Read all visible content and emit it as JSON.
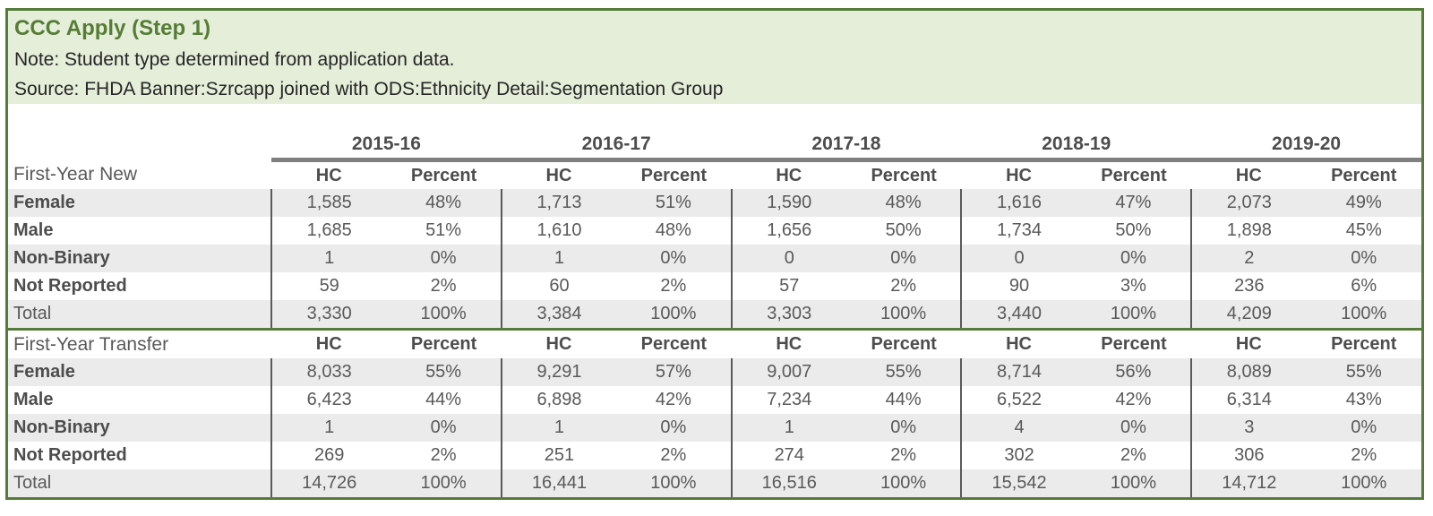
{
  "header": {
    "title": "CCC Apply (Step 1)",
    "note": "Note: Student type determined from application data.",
    "source": "Source: FHDA Banner:Szrcapp joined with ODS:Ethnicity Detail:Segmentation Group"
  },
  "colors": {
    "frame_border_green": "#557b3b",
    "band_background_green": "#e4eed9",
    "title_green": "#567d36",
    "row_stripe_gray": "#ebebeb",
    "year_rule_gray": "#7f7f7f",
    "divider_gray": "#5a5a5a",
    "text_gray": "#595959"
  },
  "chart_data": {
    "type": "table",
    "years": [
      "2015-16",
      "2016-17",
      "2017-18",
      "2018-19",
      "2019-20"
    ],
    "value_headers": [
      "HC",
      "Percent"
    ],
    "sections": [
      {
        "label": "First-Year New",
        "rows": [
          {
            "label": "Female",
            "bold": true,
            "shaded": true,
            "values": [
              [
                "1,585",
                "48%"
              ],
              [
                "1,713",
                "51%"
              ],
              [
                "1,590",
                "48%"
              ],
              [
                "1,616",
                "47%"
              ],
              [
                "2,073",
                "49%"
              ]
            ]
          },
          {
            "label": "Male",
            "bold": true,
            "shaded": false,
            "values": [
              [
                "1,685",
                "51%"
              ],
              [
                "1,610",
                "48%"
              ],
              [
                "1,656",
                "50%"
              ],
              [
                "1,734",
                "50%"
              ],
              [
                "1,898",
                "45%"
              ]
            ]
          },
          {
            "label": "Non-Binary",
            "bold": true,
            "shaded": true,
            "values": [
              [
                "1",
                "0%"
              ],
              [
                "1",
                "0%"
              ],
              [
                "0",
                "0%"
              ],
              [
                "0",
                "0%"
              ],
              [
                "2",
                "0%"
              ]
            ]
          },
          {
            "label": "Not Reported",
            "bold": true,
            "shaded": false,
            "values": [
              [
                "59",
                "2%"
              ],
              [
                "60",
                "2%"
              ],
              [
                "57",
                "2%"
              ],
              [
                "90",
                "3%"
              ],
              [
                "236",
                "6%"
              ]
            ]
          },
          {
            "label": "Total",
            "bold": false,
            "shaded": true,
            "values": [
              [
                "3,330",
                "100%"
              ],
              [
                "3,384",
                "100%"
              ],
              [
                "3,303",
                "100%"
              ],
              [
                "3,440",
                "100%"
              ],
              [
                "4,209",
                "100%"
              ]
            ]
          }
        ]
      },
      {
        "label": "First-Year Transfer",
        "rows": [
          {
            "label": "Female",
            "bold": true,
            "shaded": true,
            "values": [
              [
                "8,033",
                "55%"
              ],
              [
                "9,291",
                "57%"
              ],
              [
                "9,007",
                "55%"
              ],
              [
                "8,714",
                "56%"
              ],
              [
                "8,089",
                "55%"
              ]
            ]
          },
          {
            "label": "Male",
            "bold": true,
            "shaded": false,
            "values": [
              [
                "6,423",
                "44%"
              ],
              [
                "6,898",
                "42%"
              ],
              [
                "7,234",
                "44%"
              ],
              [
                "6,522",
                "42%"
              ],
              [
                "6,314",
                "43%"
              ]
            ]
          },
          {
            "label": "Non-Binary",
            "bold": true,
            "shaded": true,
            "values": [
              [
                "1",
                "0%"
              ],
              [
                "1",
                "0%"
              ],
              [
                "1",
                "0%"
              ],
              [
                "4",
                "0%"
              ],
              [
                "3",
                "0%"
              ]
            ]
          },
          {
            "label": "Not Reported",
            "bold": true,
            "shaded": false,
            "values": [
              [
                "269",
                "2%"
              ],
              [
                "251",
                "2%"
              ],
              [
                "274",
                "2%"
              ],
              [
                "302",
                "2%"
              ],
              [
                "306",
                "2%"
              ]
            ]
          },
          {
            "label": "Total",
            "bold": false,
            "shaded": true,
            "values": [
              [
                "14,726",
                "100%"
              ],
              [
                "16,441",
                "100%"
              ],
              [
                "16,516",
                "100%"
              ],
              [
                "15,542",
                "100%"
              ],
              [
                "14,712",
                "100%"
              ]
            ]
          }
        ]
      }
    ]
  }
}
